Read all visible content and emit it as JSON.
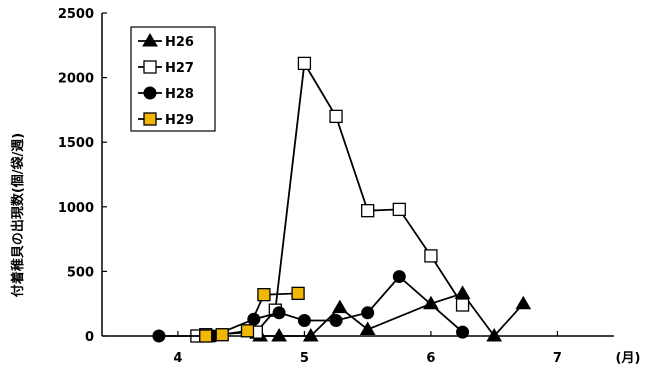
{
  "chart_data": {
    "type": "line",
    "xlabel": "(月)",
    "ylabel": "付着稚貝の出現数(個/袋/週)",
    "xlim": [
      3.4,
      7.7
    ],
    "ylim": [
      0,
      2500
    ],
    "x_ticks": [
      {
        "value": 4,
        "label": "4"
      },
      {
        "value": 5,
        "label": "5"
      },
      {
        "value": 6,
        "label": "6"
      },
      {
        "value": 7,
        "label": "7"
      }
    ],
    "y_ticks": [
      {
        "value": 0,
        "label": "0"
      },
      {
        "value": 500,
        "label": "500"
      },
      {
        "value": 1000,
        "label": "1000"
      },
      {
        "value": 1500,
        "label": "1500"
      },
      {
        "value": 2000,
        "label": "2000"
      },
      {
        "value": 2500,
        "label": "2500"
      }
    ],
    "legend_position": "top-left",
    "series": [
      {
        "name": "H26",
        "marker": "triangle",
        "x": [
          4.65,
          4.8,
          5.05,
          5.28,
          5.5,
          6.0,
          6.25,
          6.5,
          6.73
        ],
        "y": [
          0,
          0,
          0,
          220,
          50,
          250,
          330,
          0,
          250
        ]
      },
      {
        "name": "H27",
        "marker": "square-open",
        "x": [
          4.15,
          4.22,
          4.62,
          4.77,
          5.0,
          5.25,
          5.5,
          5.75,
          6.0,
          6.25
        ],
        "y": [
          0,
          10,
          30,
          200,
          2110,
          1700,
          970,
          980,
          620,
          240
        ]
      },
      {
        "name": "H28",
        "marker": "circle",
        "x": [
          3.85,
          4.22,
          4.28,
          4.6,
          4.8,
          5.0,
          5.25,
          5.5,
          5.75,
          6.25
        ],
        "y": [
          0,
          0,
          0,
          130,
          180,
          120,
          120,
          180,
          460,
          30
        ]
      },
      {
        "name": "H29",
        "marker": "square-filled",
        "x": [
          4.22,
          4.35,
          4.55,
          4.68,
          4.95
        ],
        "y": [
          0,
          10,
          40,
          320,
          330
        ]
      }
    ]
  }
}
